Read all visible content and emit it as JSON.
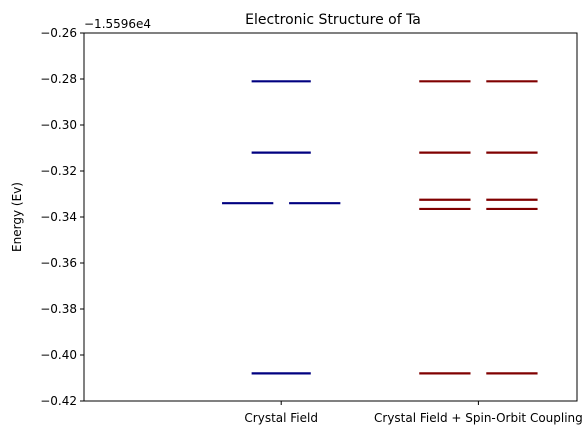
{
  "chart_data": {
    "type": "energy-level",
    "title": "Electronic Structure of Ta",
    "ylabel": "Energy (Ev)",
    "xlabel": "",
    "offset_text": "−1.5596e4",
    "y_offset": -15596,
    "ylim": [
      -0.42,
      -0.26
    ],
    "yticks": [
      -0.42,
      -0.4,
      -0.38,
      -0.36,
      -0.34,
      -0.32,
      -0.3,
      -0.28,
      -0.26
    ],
    "ytick_labels": [
      "−0.42",
      "−0.40",
      "−0.38",
      "−0.36",
      "−0.34",
      "−0.32",
      "−0.30",
      "−0.28",
      "−0.26"
    ],
    "categories": [
      "Crystal Field",
      "Crystal Field + Spin-Orbit Coupling"
    ],
    "xlim": [
      -0.5,
      2.0
    ],
    "grid": false,
    "series": [
      {
        "category": "Crystal Field",
        "color": "#000080",
        "levels": [
          {
            "energy": -0.281,
            "count": 1
          },
          {
            "energy": -0.312,
            "count": 1
          },
          {
            "energy": -0.334,
            "count": 2
          },
          {
            "energy": -0.408,
            "count": 1
          }
        ]
      },
      {
        "category": "Crystal Field + Spin-Orbit Coupling",
        "color": "#800000",
        "levels": [
          {
            "energy": -0.281,
            "count": 2
          },
          {
            "energy": -0.312,
            "count": 2
          },
          {
            "energy": -0.3325,
            "count": 2
          },
          {
            "energy": -0.3365,
            "count": 2
          },
          {
            "energy": -0.408,
            "count": 2
          }
        ]
      }
    ]
  }
}
